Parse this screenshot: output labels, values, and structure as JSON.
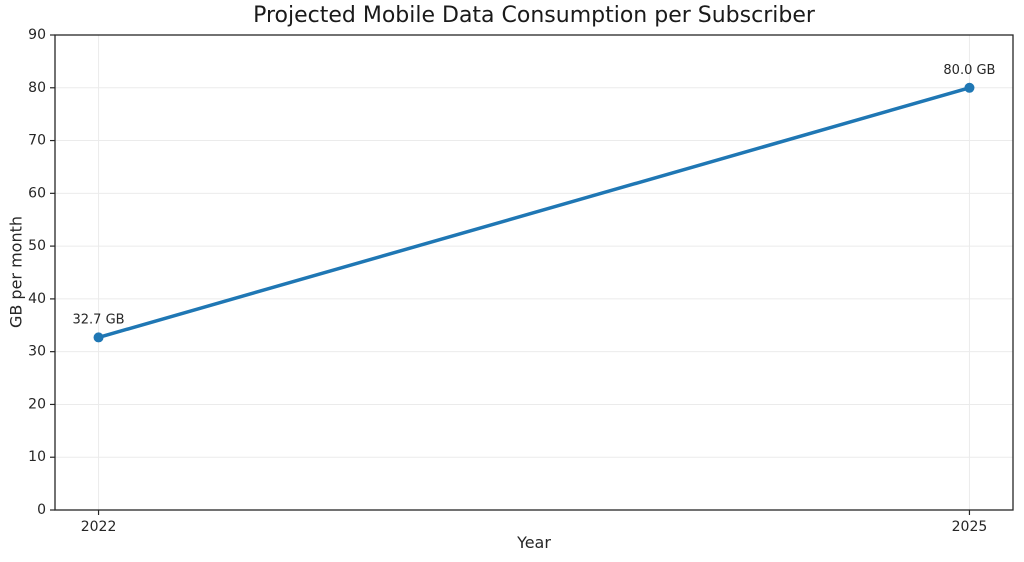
{
  "chart_data": {
    "type": "line",
    "title": "Projected Mobile Data Consumption per Subscriber",
    "xlabel": "Year",
    "ylabel": "GB per month",
    "x": [
      2022,
      2025
    ],
    "x_tick_labels": [
      "2022",
      "2025"
    ],
    "values": [
      32.7,
      80.0
    ],
    "point_labels": [
      "32.7 GB",
      "80.0 GB"
    ],
    "ylim": [
      0,
      90
    ],
    "yticks": [
      0,
      10,
      20,
      30,
      40,
      50,
      60,
      70,
      80,
      90
    ],
    "grid": true,
    "legend": "none",
    "line_color": "#1f77b4",
    "marker_color": "#1f77b4",
    "grid_color": "#ebebeb",
    "axis_color": "#262626",
    "text_color": "#1a1a1a",
    "background_color": "#ffffff"
  }
}
